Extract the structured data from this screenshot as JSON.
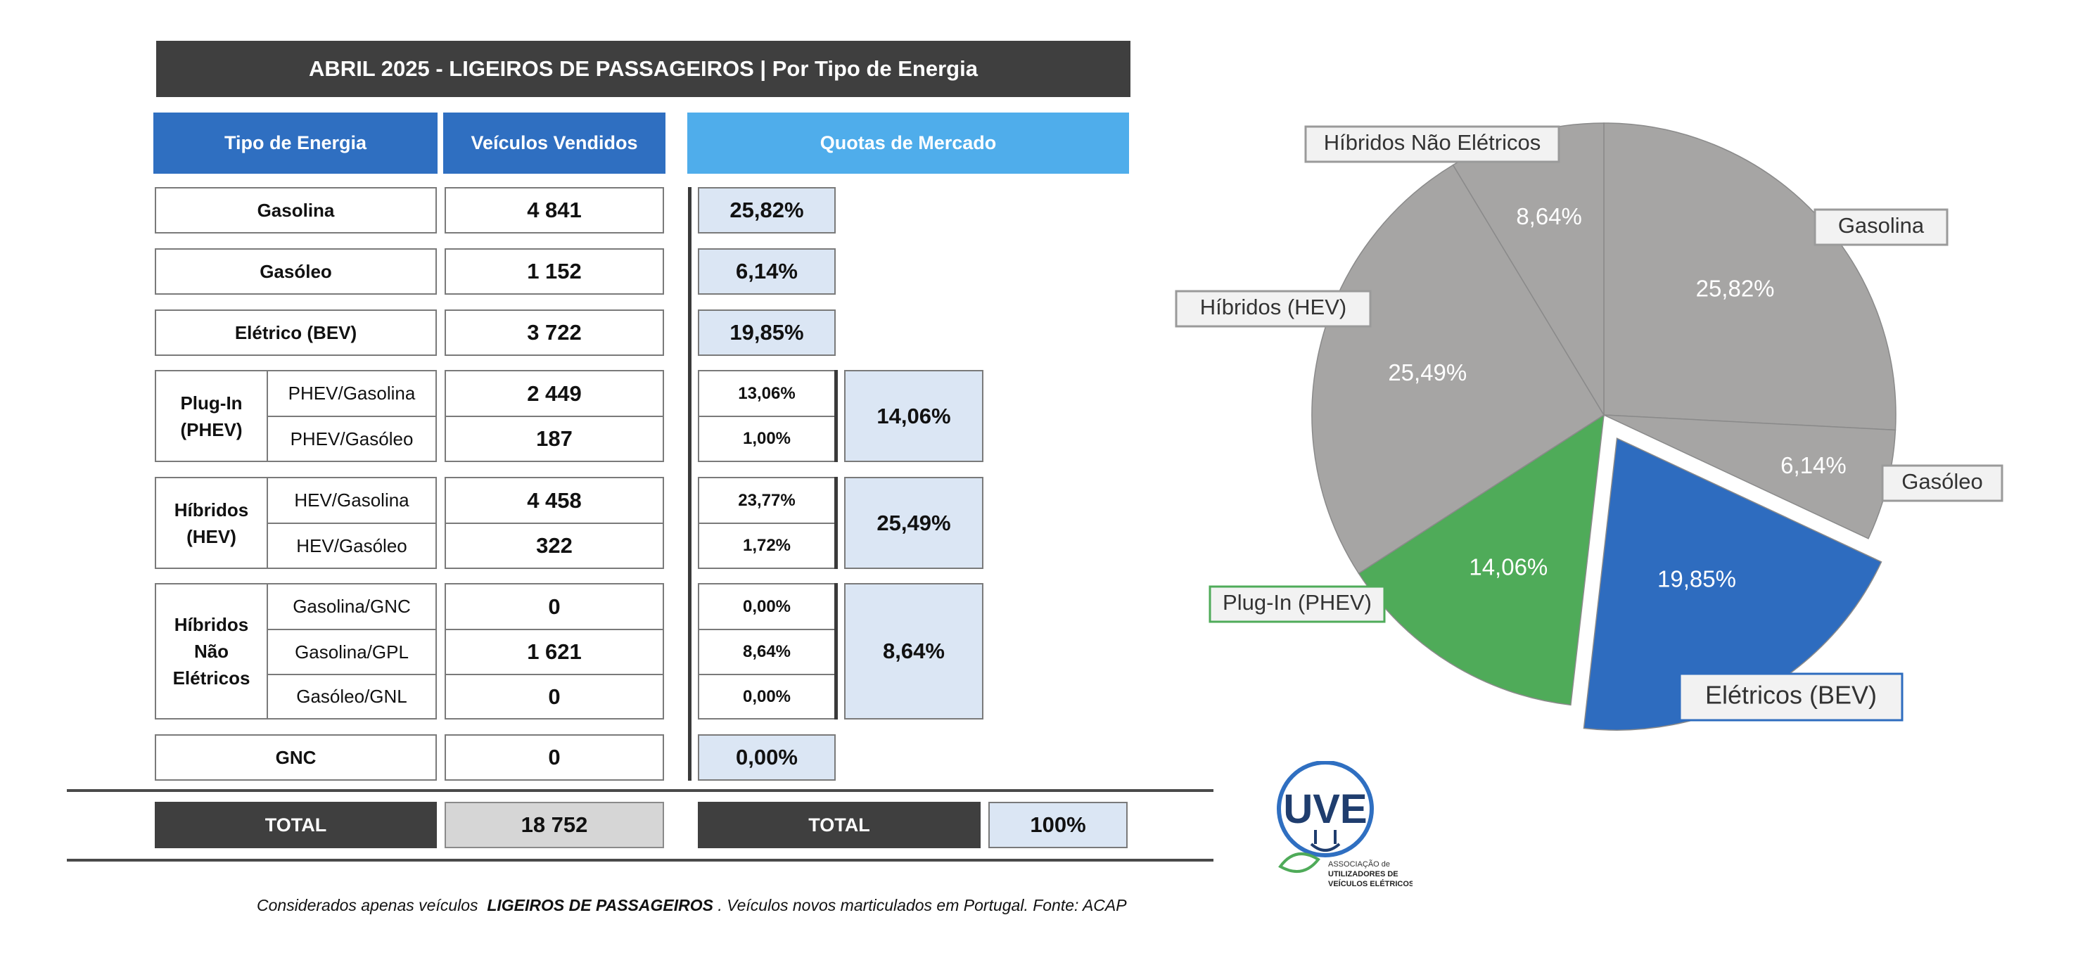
{
  "title": "ABRIL 2025 - LIGEIROS DE PASSAGEIROS | Por Tipo de Energia",
  "headers": {
    "energy_type": "Tipo de Energia",
    "vehicles_sold": "Veículos Vendidos",
    "market_share": "Quotas de Mercado"
  },
  "rows": {
    "gasolina": {
      "label": "Gasolina",
      "value": "4 841",
      "share": "25,82%"
    },
    "gasoleo": {
      "label": "Gasóleo",
      "value": "1 152",
      "share": "6,14%"
    },
    "eletrico": {
      "label": "Elétrico (BEV)",
      "value": "3 722",
      "share": "19,85%"
    },
    "phev": {
      "group_label": "Plug-In (PHEV)",
      "group_share": "14,06%",
      "sub": [
        {
          "label": "PHEV/Gasolina",
          "value": "2 449",
          "share": "13,06%"
        },
        {
          "label": "PHEV/Gasóleo",
          "value": "187",
          "share": "1,00%"
        }
      ]
    },
    "hev": {
      "group_label": "Híbridos (HEV)",
      "group_share": "25,49%",
      "sub": [
        {
          "label": "HEV/Gasolina",
          "value": "4 458",
          "share": "23,77%"
        },
        {
          "label": "HEV/Gasóleo",
          "value": "322",
          "share": "1,72%"
        }
      ]
    },
    "hne": {
      "group_label": "Híbridos Não Elétricos",
      "group_share": "8,64%",
      "sub": [
        {
          "label": "Gasolina/GNC",
          "value": "0",
          "share": "0,00%"
        },
        {
          "label": "Gasolina/GPL",
          "value": "1 621",
          "share": "8,64%"
        },
        {
          "label": "Gasóleo/GNL",
          "value": "0",
          "share": "0,00%"
        }
      ]
    },
    "gnc": {
      "label": "GNC",
      "value": "0",
      "share": "0,00%"
    }
  },
  "totals": {
    "label_left": "TOTAL",
    "vehicles": "18 752",
    "label_right": "TOTAL",
    "share": "100%"
  },
  "footnote": {
    "prefix": "Considerados apenas veículos",
    "bold": "LIGEIROS DE PASSAGEIROS",
    "suffix": ". Veículos novos marticulados em Portugal. Fonte: ACAP"
  },
  "logo": {
    "text": "UVE",
    "line1": "ASSOCIAÇÃO de",
    "line2": "UTILIZADORES DE",
    "line3": "VEÍCULOS ELÉTRICOS"
  },
  "colors": {
    "grey_slice": "#a6a5a4",
    "green_slice": "#4fab59",
    "blue_slice": "#2e6cbf",
    "header_dark": "#2f6fc1",
    "header_light": "#4fadeb"
  },
  "chart_data": {
    "type": "pie",
    "slices": [
      {
        "label": "Gasolina",
        "value": 25.82,
        "text": "25,82%",
        "color": "#a6a5a4",
        "exploded": false
      },
      {
        "label": "Gasóleo",
        "value": 6.14,
        "text": "6,14%",
        "color": "#a6a5a4",
        "exploded": false
      },
      {
        "label": "Elétricos (BEV)",
        "value": 19.85,
        "text": "19,85%",
        "color": "#2e6cbf",
        "exploded": true
      },
      {
        "label": "Plug-In (PHEV)",
        "value": 14.06,
        "text": "14,06%",
        "color": "#4fab59",
        "exploded": false
      },
      {
        "label": "Híbridos (HEV)",
        "value": 25.49,
        "text": "25,49%",
        "color": "#a6a5a4",
        "exploded": false
      },
      {
        "label": "Híbridos Não Elétricos",
        "value": 8.64,
        "text": "8,64%",
        "color": "#a6a5a4",
        "exploded": false
      }
    ]
  }
}
